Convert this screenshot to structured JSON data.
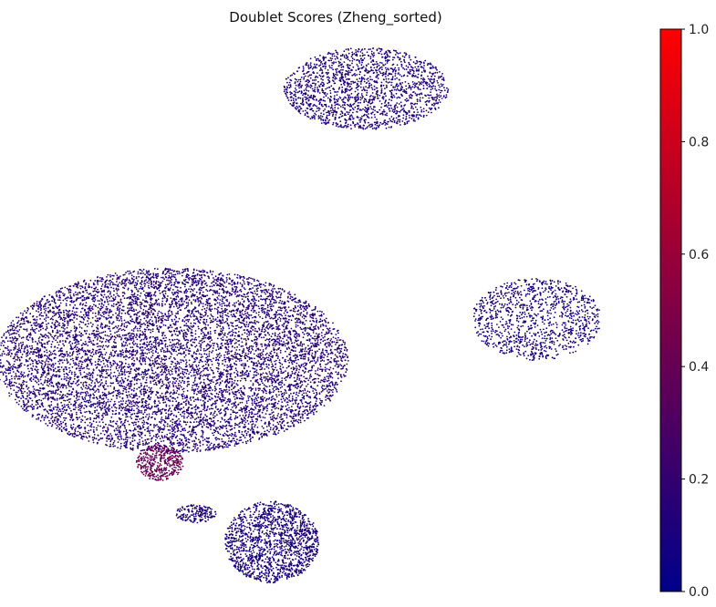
{
  "chart_data": {
    "type": "scatter",
    "title": "Doublet Scores (Zheng_sorted)",
    "xlabel": "",
    "ylabel": "",
    "axes_visible": false,
    "grid": false,
    "colormap": {
      "name": "blue-to-red",
      "low_color": "#00008b",
      "high_color": "#ff0000",
      "range": [
        0.0,
        1.0
      ],
      "ticks": [
        0.0,
        0.2,
        0.4,
        0.6,
        0.8,
        1.0
      ],
      "tick_labels": [
        "0.0",
        "0.2",
        "0.4",
        "0.6",
        "0.8",
        "1.0"
      ],
      "placement": "right"
    },
    "xlim": [
      0,
      100
    ],
    "ylim": [
      0,
      100
    ],
    "clusters": [
      {
        "label": "",
        "center": [
          23,
          40
        ],
        "radius": [
          30,
          18
        ],
        "n_points": 9000,
        "mean_score": 0.15
      },
      {
        "label": "",
        "center": [
          21,
          20
        ],
        "radius": [
          4,
          3.5
        ],
        "n_points": 400,
        "mean_score": 0.4
      },
      {
        "label": "",
        "center": [
          27,
          10
        ],
        "radius": [
          3.5,
          1.8
        ],
        "n_points": 180,
        "mean_score": 0.12
      },
      {
        "label": "",
        "center": [
          40,
          4.5
        ],
        "radius": [
          8,
          8
        ],
        "n_points": 1500,
        "mean_score": 0.1
      },
      {
        "label": "",
        "center": [
          56,
          93
        ],
        "radius": [
          14,
          8
        ],
        "n_points": 1800,
        "mean_score": 0.12
      },
      {
        "label": "",
        "center": [
          85,
          48
        ],
        "radius": [
          11,
          8
        ],
        "n_points": 1100,
        "mean_score": 0.1
      }
    ]
  }
}
